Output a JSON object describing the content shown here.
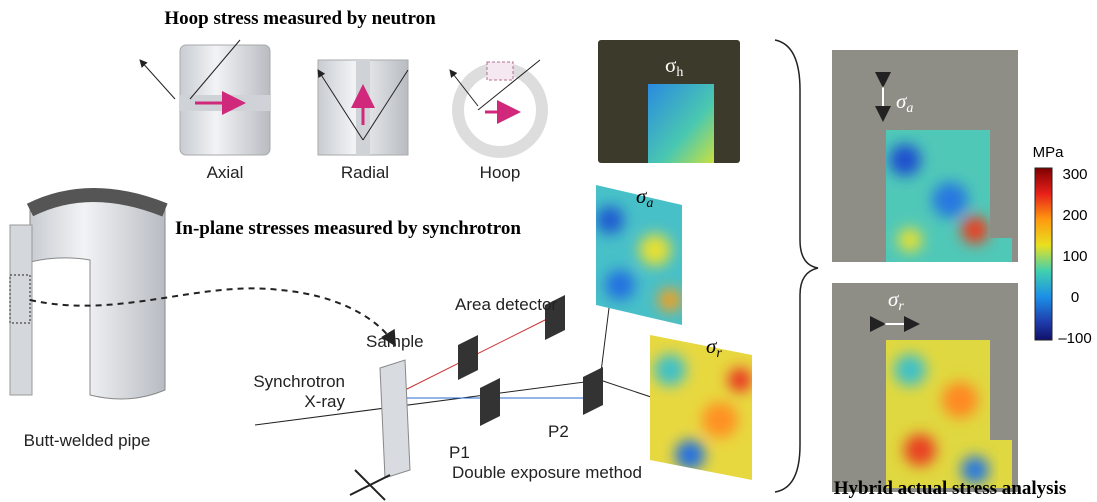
{
  "neutron": {
    "title": "Hoop stress measured by neutron",
    "directions": [
      "Axial",
      "Radial",
      "Hoop"
    ],
    "map_label": {
      "symbol": "σ",
      "subscript": "h"
    }
  },
  "synchrotron": {
    "title": "In-plane stresses measured by synchrotron",
    "map_labels": [
      {
        "symbol": "σ",
        "subscript": "a"
      },
      {
        "symbol": "σ",
        "subscript": "r"
      }
    ],
    "labels": {
      "detector": "Area detector",
      "sample": "Sample",
      "source": [
        "Synchrotron",
        "X-ray"
      ],
      "p1": "P1",
      "p2": "P2",
      "method": "Double exposure method"
    }
  },
  "pipe": {
    "label": "Butt-welded pipe"
  },
  "hybrid": {
    "title": "Hybrid actual stress analysis",
    "map_labels": [
      {
        "symbol": "σ",
        "subscript": "a"
      },
      {
        "symbol": "σ",
        "subscript": "r"
      }
    ],
    "colorbar": {
      "unit": "MPa",
      "ticks": [
        "300",
        "200",
        "100",
        "0",
        "–100"
      ]
    }
  }
}
